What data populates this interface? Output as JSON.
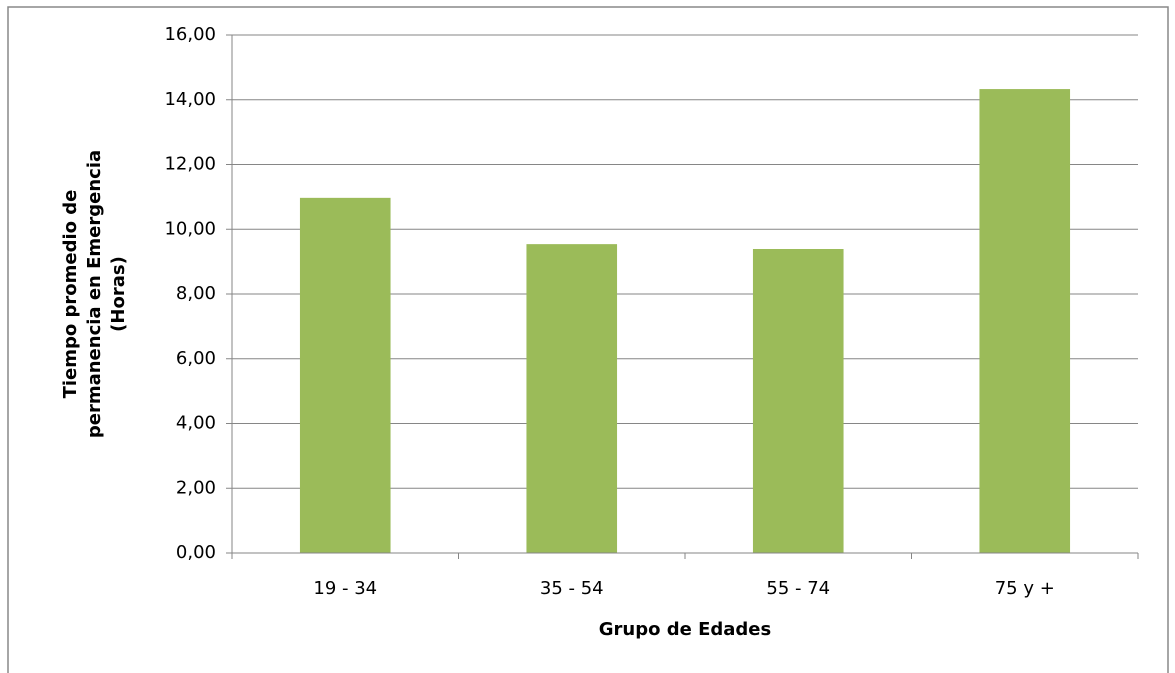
{
  "chart_data": {
    "type": "bar",
    "categories": [
      "19 - 34",
      "35 - 54",
      "55 - 74",
      "75 y +"
    ],
    "values": [
      10.97,
      9.54,
      9.39,
      14.33
    ],
    "color": "#9bbb59",
    "xlabel": "Grupo de Edades",
    "ylabel": [
      "Tiempo promedio de",
      "permanencia en Emergencia",
      "(Horas)"
    ],
    "ylim": [
      0,
      16
    ],
    "yticks": [
      {
        "value": 0,
        "label": "0,00"
      },
      {
        "value": 2,
        "label": "2,00"
      },
      {
        "value": 4,
        "label": "4,00"
      },
      {
        "value": 6,
        "label": "6,00"
      },
      {
        "value": 8,
        "label": "8,00"
      },
      {
        "value": 10,
        "label": "10,00"
      },
      {
        "value": 12,
        "label": "12,00"
      },
      {
        "value": 14,
        "label": "14,00"
      },
      {
        "value": 16,
        "label": "16,00"
      }
    ],
    "grid": true
  }
}
